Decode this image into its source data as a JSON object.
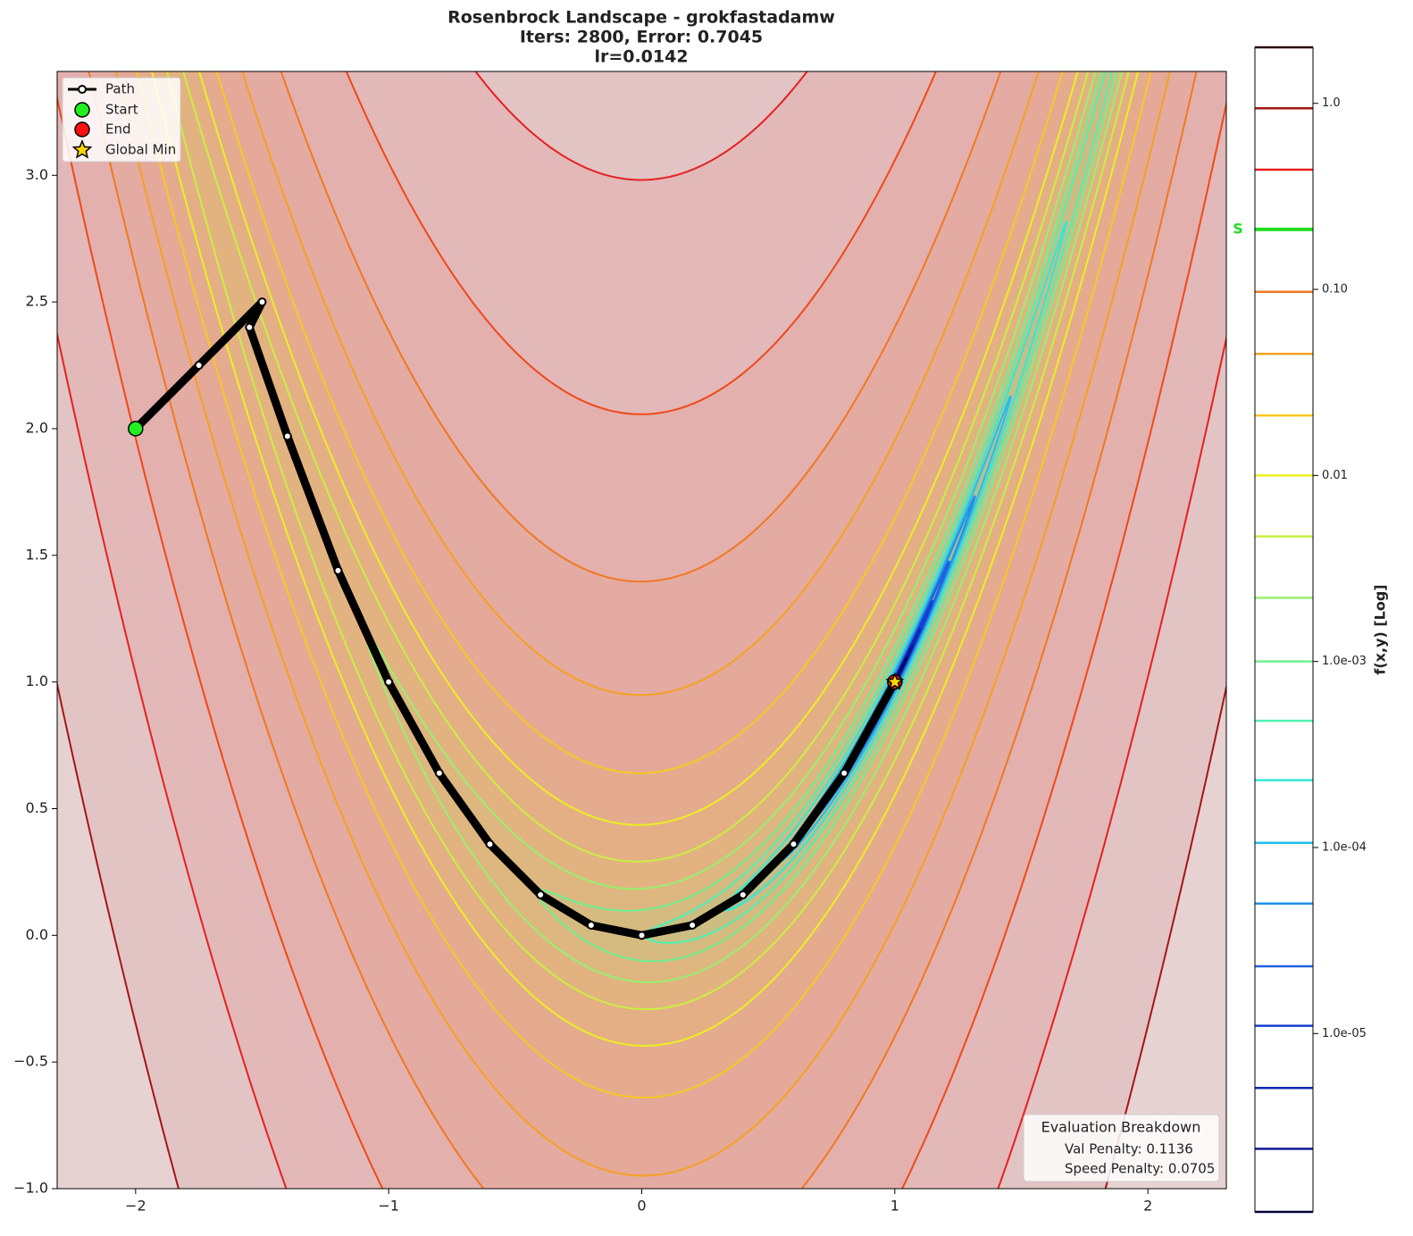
{
  "chart_data": {
    "type": "contour",
    "title": [
      "Rosenbrock Landscape - grokfastadamw",
      "Iters: 2800, Error: 0.7045",
      "lr=0.0142"
    ],
    "xlim": [
      -2.31,
      2.31
    ],
    "ylim": [
      -1.0,
      3.41
    ],
    "xticks": [
      {
        "value": -2,
        "label": "−2"
      },
      {
        "value": -1,
        "label": "−1"
      },
      0,
      1,
      2
    ],
    "yticks": [
      {
        "value": -1.0,
        "label": "−1.0"
      },
      {
        "value": -0.5,
        "label": "−0.5"
      },
      {
        "value": 0.0,
        "label": "0.0"
      },
      {
        "value": 0.5,
        "label": "0.5"
      },
      {
        "value": 1.0,
        "label": "1.0"
      },
      {
        "value": 1.5,
        "label": "1.5"
      },
      {
        "value": 2.0,
        "label": "2.0"
      },
      {
        "value": 2.5,
        "label": "2.5"
      },
      {
        "value": 3.0,
        "label": "3.0"
      }
    ],
    "contours": {
      "levels": [
        4040,
        1900,
        890,
        424,
        196,
        91,
        42,
        20,
        9.5,
        4.4,
        2.0,
        0.97,
        0.46,
        0.21,
        0.1,
        0.046,
        0.022,
        0.01,
        0.0048,
        0.0022
      ],
      "colors": [
        "#4a0000",
        "#a51515",
        "#e62020",
        "#f04818",
        "#f07820",
        "#f5a020",
        "#f8c820",
        "#eaf020",
        "#c8f040",
        "#98f070",
        "#70f090",
        "#50f0b0",
        "#30e8d8",
        "#20c0f0",
        "#2090e8",
        "#2060e0",
        "#1840d0",
        "#1028b0",
        "#101890",
        "#080860"
      ]
    },
    "series": [
      {
        "name": "Path",
        "color": "#000000",
        "marker": "circle",
        "x": [
          -2.0,
          -1.75,
          -1.5,
          -1.55,
          -1.4,
          -1.2,
          -1.0,
          -0.8,
          -0.6,
          -0.4,
          -0.2,
          0.0,
          0.2,
          0.4,
          0.6,
          0.8,
          1.0
        ],
        "y": [
          2.0,
          2.25,
          2.5,
          2.4,
          1.97,
          1.44,
          1.0,
          0.64,
          0.36,
          0.16,
          0.04,
          0.0,
          0.04,
          0.16,
          0.36,
          0.64,
          1.0
        ]
      },
      {
        "name": "Start",
        "color": "#22ee22",
        "marker": "circle",
        "x": [
          -2.0
        ],
        "y": [
          2.0
        ]
      },
      {
        "name": "End",
        "color": "#ff1111",
        "marker": "circle",
        "x": [
          1.0
        ],
        "y": [
          1.0
        ]
      },
      {
        "name": "Global Min",
        "color": "#ffd700",
        "marker": "star",
        "x": [
          1.0
        ],
        "y": [
          1.0
        ]
      }
    ],
    "legend": "upper left",
    "colorbar": {
      "label": "f(x,y) [Log]",
      "log": true,
      "lim": [
        1.1e-06,
        2.0
      ],
      "ticks": [
        {
          "value": 1.0,
          "label": "1.0"
        },
        {
          "value": 0.1,
          "label": "0.10"
        },
        0.01,
        {
          "value": 0.001,
          "label": "1.0e-03"
        },
        {
          "value": 0.0001,
          "label": "1.0e-04"
        },
        {
          "value": 1e-05,
          "label": "1.0e-05"
        }
      ],
      "levels": [
        2.0,
        0.94,
        0.44,
        0.21,
        0.097,
        0.045,
        0.021,
        0.01,
        0.0047,
        0.0022,
        0.001,
        0.00048,
        0.00023,
        0.000106,
        5e-05,
        2.3e-05,
        1.1e-05,
        5.1e-06,
        2.4e-06,
        1.1e-06
      ],
      "marker": {
        "value": 0.21,
        "label": "S",
        "color": "#22dd22"
      }
    },
    "annotation": {
      "title": "Evaluation Breakdown",
      "lines": [
        "Val Penalty: 0.1136",
        "Speed Penalty: 0.0705"
      ]
    }
  }
}
